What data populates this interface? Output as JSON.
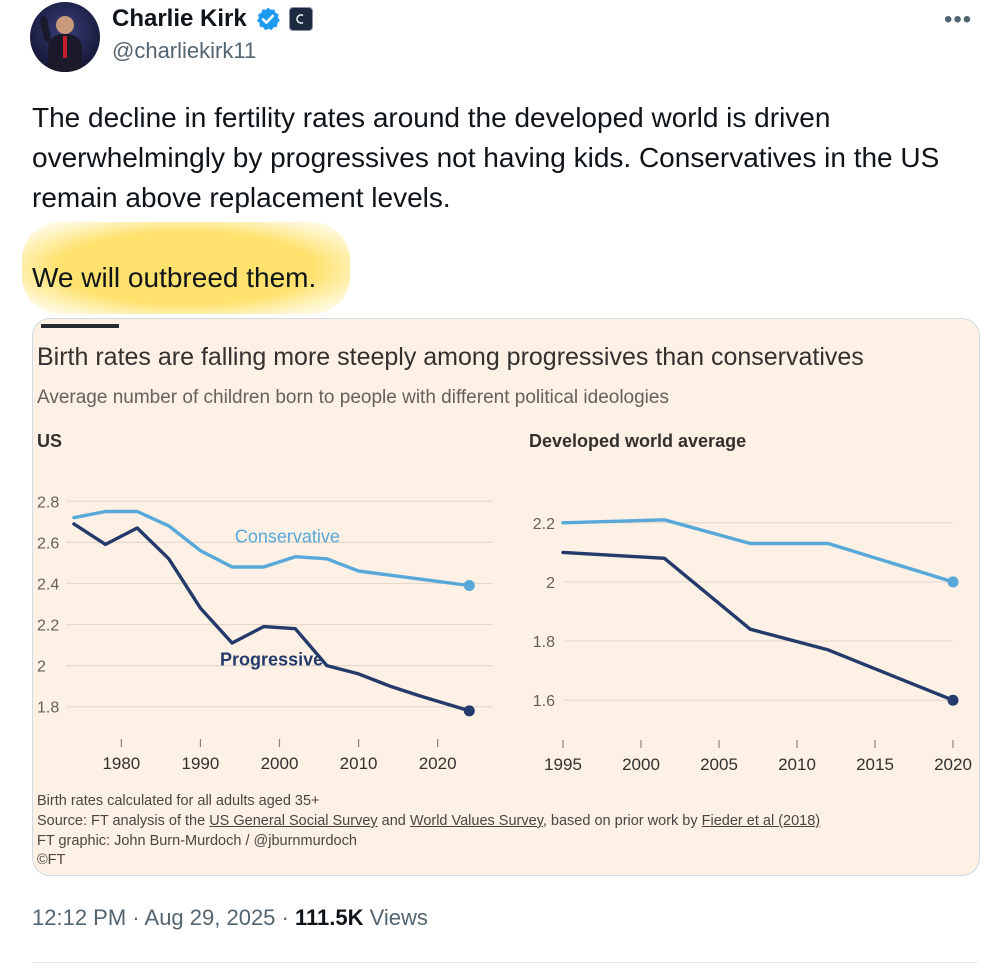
{
  "author": {
    "name": "Charlie Kirk",
    "handle": "@charliekirk11"
  },
  "tweet": {
    "line1": "The decline in fertility rates around the developed world is driven",
    "line2": "overwhelmingly by progressives not having kids. Conservatives in the US",
    "line3": "remain above replacement levels.",
    "line4": "We will outbreed them."
  },
  "image": {
    "title": "Birth rates are falling more steeply among progressives than conservatives",
    "subtitle": "Average number of children born to people with different political ideologies",
    "footnotes": {
      "calc": "Birth rates calculated for all adults aged 35+",
      "source_prefix": "Source: FT analysis of the ",
      "source_gss": "US General Social Survey",
      "source_and": " and ",
      "source_wvs": "World Values Survey",
      "source_mid": ", based on prior work by ",
      "source_fieder": "Fieder et al (2018)",
      "graphic": "FT graphic: John Burn-Murdoch / @jburnmurdoch",
      "copyright": "©FT"
    }
  },
  "chart_data": [
    {
      "type": "line",
      "title": "US",
      "xlim": [
        1973,
        2027
      ],
      "ylim": [
        1.75,
        2.85
      ],
      "x_ticks": [
        1980,
        1990,
        2000,
        2010,
        2020
      ],
      "y_ticks": [
        1.8,
        2,
        2.2,
        2.4,
        2.6,
        2.8
      ],
      "y_tick_labels": [
        "1.8",
        "2",
        "2.2",
        "2.4",
        "2.6",
        "2.8"
      ],
      "series": [
        {
          "name": "Conservative",
          "color": "#58a7d9",
          "x": [
            1974,
            1978,
            1982,
            1986,
            1990,
            1994,
            1998,
            2002,
            2006,
            2010,
            2014,
            2018,
            2024
          ],
          "values": [
            2.72,
            2.75,
            2.75,
            2.68,
            2.56,
            2.48,
            2.48,
            2.53,
            2.52,
            2.46,
            2.44,
            2.42,
            2.39
          ]
        },
        {
          "name": "Progressive",
          "color": "#233a6a",
          "x": [
            1974,
            1978,
            1982,
            1986,
            1990,
            1994,
            1998,
            2002,
            2006,
            2010,
            2014,
            2018,
            2024
          ],
          "values": [
            2.69,
            2.59,
            2.67,
            2.52,
            2.28,
            2.11,
            2.19,
            2.18,
            2.0,
            1.96,
            1.9,
            1.85,
            1.78
          ]
        }
      ]
    },
    {
      "type": "line",
      "title": "Developed world average",
      "xlim": [
        1995,
        2020
      ],
      "ylim": [
        1.55,
        2.25
      ],
      "x_ticks": [
        1995,
        2000,
        2005,
        2010,
        2015,
        2020
      ],
      "y_ticks": [
        1.6,
        1.8,
        2,
        2.2
      ],
      "y_tick_labels": [
        "1.6",
        "1.8",
        "2",
        "2.2"
      ],
      "series": [
        {
          "name": "Conservative",
          "color": "#58a7d9",
          "x": [
            1995,
            2001.5,
            2007,
            2012,
            2020
          ],
          "values": [
            2.2,
            2.21,
            2.13,
            2.13,
            2.0
          ]
        },
        {
          "name": "Progressive",
          "color": "#233a6a",
          "x": [
            1995,
            2001.5,
            2007,
            2012,
            2020
          ],
          "values": [
            2.1,
            2.08,
            1.84,
            1.77,
            1.6
          ]
        }
      ]
    }
  ],
  "footer": {
    "time": "12:12 PM",
    "sep1": " · ",
    "date": "Aug 29, 2025",
    "sep2": " · ",
    "views_count": "111.5K",
    "views_label": " Views"
  },
  "icons": {
    "more": "more-options-icon",
    "verified": "verified-badge-icon",
    "affiliate": "affiliate-badge-icon"
  },
  "colors": {
    "conservative": "#58a7d9",
    "progressive": "#233a6a",
    "card_bg": "#fdf1e6",
    "highlight": "#ffe066",
    "verified": "#1d9bf0"
  }
}
